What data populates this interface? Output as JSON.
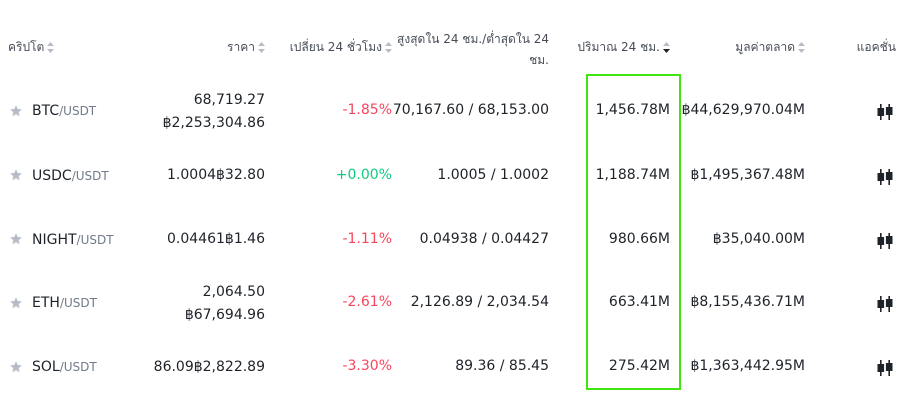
{
  "header": {
    "crypto": "คริปโต",
    "price": "ราคา",
    "change24h": "เปลี่ยน 24 ชั่วโมง",
    "highlow_line1": "สูงสุดใน 24 ชม./ต่ำสุดใน 24",
    "highlow_line2": "ชม.",
    "volume": "ปริมาณ 24 ชม.",
    "marketcap": "มูลค่าตลาด",
    "actions": "แอคชั่น"
  },
  "rows": [
    {
      "base": "BTC",
      "quote": "/USDT",
      "price_line1": "68,719.27",
      "price_line2": "฿2,253,304.86",
      "change": "-1.85%",
      "change_dir": "neg",
      "highlow": "70,167.60 / 68,153.00",
      "volume": "1,456.78M",
      "marketcap": "฿44,629,970.04M"
    },
    {
      "base": "USDC",
      "quote": "/USDT",
      "price_line1": "1.0004฿32.80",
      "price_line2": "",
      "change": "+0.00%",
      "change_dir": "pos",
      "highlow": "1.0005 / 1.0002",
      "volume": "1,188.74M",
      "marketcap": "฿1,495,367.48M"
    },
    {
      "base": "NIGHT",
      "quote": "/USDT",
      "price_line1": "0.04461฿1.46",
      "price_line2": "",
      "change": "-1.11%",
      "change_dir": "neg",
      "highlow": "0.04938 / 0.04427",
      "volume": "980.66M",
      "marketcap": "฿35,040.00M"
    },
    {
      "base": "ETH",
      "quote": "/USDT",
      "price_line1": "2,064.50",
      "price_line2": "฿67,694.96",
      "change": "-2.61%",
      "change_dir": "neg",
      "highlow": "2,126.89 / 2,034.54",
      "volume": "663.41M",
      "marketcap": "฿8,155,436.71M"
    },
    {
      "base": "SOL",
      "quote": "/USDT",
      "price_line1": "86.09฿2,822.89",
      "price_line2": "",
      "change": "-3.30%",
      "change_dir": "neg",
      "highlow": "89.36 / 85.45",
      "volume": "275.42M",
      "marketcap": "฿1,363,442.95M"
    }
  ],
  "colors": {
    "negative": "#f6465d",
    "positive": "#0ecb81",
    "highlight_box": "#42e50f",
    "star": "#b7bdc6"
  },
  "icons": {
    "sort": "sort-arrows-icon",
    "star": "star-icon",
    "trade": "trade-candlestick-icon"
  }
}
